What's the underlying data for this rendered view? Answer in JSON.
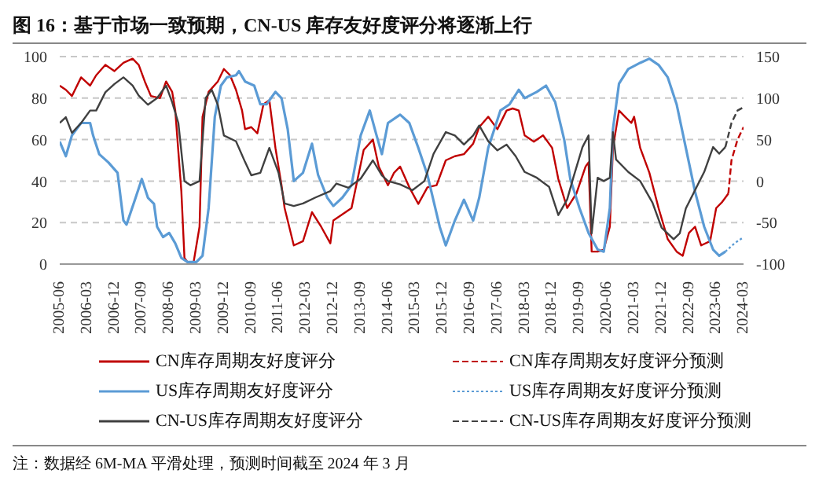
{
  "chart_data": {
    "type": "line",
    "title": "图 16：基于市场一致预期，CN-US 库存友好度评分将逐渐上行",
    "annotations": [
      "注：数据经 6M-MA 平滑处理，预测时间截至 2024 年 3 月"
    ],
    "xlim": [
      "2005-06",
      "2024-03"
    ],
    "xticks": [
      "2005-06",
      "2006-03",
      "2006-12",
      "2007-09",
      "2008-06",
      "2009-03",
      "2009-12",
      "2010-09",
      "2011-06",
      "2012-03",
      "2012-12",
      "2013-09",
      "2014-06",
      "2015-03",
      "2015-12",
      "2016-09",
      "2017-06",
      "2018-03",
      "2018-12",
      "2019-09",
      "2020-06",
      "2021-03",
      "2021-12",
      "2022-09",
      "2023-06",
      "2024-03"
    ],
    "ylim": [
      0,
      100
    ],
    "yticks": [
      0,
      20,
      40,
      60,
      80,
      100
    ],
    "y2lim": [
      -100,
      150
    ],
    "y2ticks": [
      -100,
      -50,
      0,
      50,
      100,
      150
    ],
    "grid": "y",
    "legend": "bottom",
    "marker": "none",
    "series": [
      {
        "name": "CN库存周期友好度评分",
        "color": "#c00000",
        "line_style": "solid",
        "x": [
          "2005-06",
          "2005-08",
          "2005-10",
          "2006-01",
          "2006-04",
          "2006-06",
          "2006-09",
          "2006-12",
          "2007-03",
          "2007-06",
          "2007-08",
          "2007-10",
          "2007-12",
          "2008-03",
          "2008-05",
          "2008-07",
          "2008-08",
          "2008-10",
          "2008-11",
          "2008-12",
          "2009-02",
          "2009-04",
          "2009-05",
          "2009-07",
          "2009-10",
          "2009-12",
          "2010-02",
          "2010-04",
          "2010-06",
          "2010-07",
          "2010-09",
          "2010-11",
          "2011-01",
          "2011-03",
          "2011-05",
          "2011-07",
          "2011-08",
          "2011-11",
          "2012-02",
          "2012-05",
          "2012-08",
          "2012-11",
          "2012-12",
          "2013-03",
          "2013-06",
          "2013-08",
          "2013-10",
          "2014-01",
          "2014-03",
          "2014-06",
          "2014-08",
          "2014-10",
          "2015-01",
          "2015-04",
          "2015-07",
          "2015-10",
          "2016-01",
          "2016-04",
          "2016-07",
          "2016-10",
          "2016-12",
          "2017-03",
          "2017-06",
          "2017-09",
          "2017-11",
          "2018-01",
          "2018-03",
          "2018-06",
          "2018-09",
          "2018-12",
          "2019-02",
          "2019-05",
          "2019-08",
          "2019-11",
          "2019-12",
          "2020-01",
          "2020-03",
          "2020-05",
          "2020-07",
          "2020-08",
          "2020-10",
          "2020-12",
          "2021-02",
          "2021-03",
          "2021-05",
          "2021-08",
          "2021-11",
          "2022-02",
          "2022-05",
          "2022-07",
          "2022-09",
          "2022-11",
          "2023-01",
          "2023-04",
          "2023-06",
          "2023-08",
          "2023-10"
        ],
        "values": [
          86,
          84,
          81,
          90,
          86,
          91,
          96,
          93,
          97,
          99,
          96,
          88,
          81,
          80,
          88,
          83,
          74,
          35,
          3,
          1,
          1,
          18,
          71,
          83,
          88,
          94,
          91,
          84,
          74,
          65,
          66,
          63,
          77,
          79,
          56,
          38,
          27,
          9,
          11,
          25,
          18,
          10,
          21,
          24,
          27,
          41,
          55,
          60,
          47,
          38,
          44,
          47,
          37,
          29,
          37,
          38,
          50,
          52,
          53,
          58,
          66,
          71,
          65,
          74,
          75,
          74,
          62,
          59,
          62,
          56,
          41,
          27,
          34,
          47,
          49,
          6,
          6,
          7,
          18,
          56,
          74,
          71,
          68,
          71,
          56,
          44,
          27,
          12,
          6,
          4,
          15,
          18,
          9,
          11,
          27,
          30,
          34
        ]
      },
      {
        "name": "CN库存周期友好度评分预测",
        "color": "#c00000",
        "line_style": "dashed",
        "x": [
          "2023-10",
          "2023-11",
          "2024-01",
          "2024-03"
        ],
        "values": [
          34,
          50,
          60,
          66
        ]
      },
      {
        "name": "US库存周期友好度评分",
        "color": "#5b9bd5",
        "line_style": "solid",
        "x": [
          "2005-06",
          "2005-08",
          "2005-10",
          "2006-01",
          "2006-04",
          "2006-05",
          "2006-07",
          "2006-10",
          "2007-01",
          "2007-03",
          "2007-04",
          "2007-07",
          "2007-09",
          "2007-11",
          "2008-01",
          "2008-02",
          "2008-04",
          "2008-06",
          "2008-08",
          "2008-10",
          "2008-12",
          "2009-03",
          "2009-05",
          "2009-07",
          "2009-09",
          "2009-11",
          "2010-01",
          "2010-04",
          "2010-05",
          "2010-07",
          "2010-10",
          "2010-12",
          "2011-02",
          "2011-05",
          "2011-07",
          "2011-09",
          "2011-11",
          "2012-02",
          "2012-05",
          "2012-07",
          "2012-10",
          "2012-12",
          "2013-03",
          "2013-06",
          "2013-09",
          "2013-12",
          "2014-02",
          "2014-04",
          "2014-06",
          "2014-10",
          "2015-01",
          "2015-04",
          "2015-07",
          "2015-11",
          "2016-01",
          "2016-04",
          "2016-07",
          "2016-10",
          "2016-12",
          "2017-03",
          "2017-07",
          "2017-10",
          "2018-01",
          "2018-03",
          "2018-07",
          "2018-10",
          "2019-01",
          "2019-04",
          "2019-06",
          "2019-09",
          "2019-12",
          "2020-03",
          "2020-05",
          "2020-07",
          "2020-08",
          "2020-10",
          "2021-01",
          "2021-05",
          "2021-08",
          "2021-11",
          "2022-02",
          "2022-05",
          "2022-08",
          "2022-11",
          "2023-02",
          "2023-05",
          "2023-07",
          "2023-09"
        ],
        "values": [
          59,
          52,
          62,
          68,
          68,
          62,
          53,
          49,
          44,
          21,
          19,
          32,
          41,
          32,
          29,
          18,
          13,
          15,
          10,
          3,
          1,
          1,
          4,
          27,
          71,
          86,
          90,
          91,
          93,
          88,
          86,
          77,
          77,
          83,
          80,
          65,
          40,
          44,
          58,
          43,
          32,
          28,
          32,
          38,
          62,
          74,
          63,
          53,
          68,
          72,
          68,
          56,
          43,
          18,
          9,
          21,
          31,
          21,
          32,
          56,
          74,
          77,
          84,
          80,
          83,
          86,
          78,
          60,
          41,
          27,
          15,
          7,
          6,
          27,
          65,
          87,
          94,
          97,
          99,
          96,
          90,
          77,
          56,
          35,
          18,
          7,
          4,
          6
        ]
      },
      {
        "name": "US库存周期友好度评分预测",
        "color": "#5b9bd5",
        "line_style": "dotted",
        "x": [
          "2023-09",
          "2023-12",
          "2024-03"
        ],
        "values": [
          6,
          10,
          13
        ]
      },
      {
        "name": "CN-US库存周期友好度评分",
        "color": "#404040",
        "line_style": "solid",
        "axis": "y2",
        "x": [
          "2005-06",
          "2005-08",
          "2005-10",
          "2006-01",
          "2006-04",
          "2006-06",
          "2006-09",
          "2006-12",
          "2007-03",
          "2007-06",
          "2007-08",
          "2007-11",
          "2008-02",
          "2008-05",
          "2008-07",
          "2008-09",
          "2008-11",
          "2009-01",
          "2009-04",
          "2009-06",
          "2009-08",
          "2009-10",
          "2009-12",
          "2010-04",
          "2010-07",
          "2010-09",
          "2010-12",
          "2011-03",
          "2011-06",
          "2011-08",
          "2011-11",
          "2012-02",
          "2012-06",
          "2012-11",
          "2013-01",
          "2013-05",
          "2013-09",
          "2014-01",
          "2014-04",
          "2014-06",
          "2014-10",
          "2015-02",
          "2015-06",
          "2015-09",
          "2016-01",
          "2016-04",
          "2016-07",
          "2016-10",
          "2016-12",
          "2017-03",
          "2017-06",
          "2017-09",
          "2017-12",
          "2018-03",
          "2018-07",
          "2018-11",
          "2019-02",
          "2019-05",
          "2019-07",
          "2019-10",
          "2019-12",
          "2020-01",
          "2020-03",
          "2020-05",
          "2020-07",
          "2020-08",
          "2020-09",
          "2021-01",
          "2021-05",
          "2021-09",
          "2021-12",
          "2022-04",
          "2022-06",
          "2022-08",
          "2022-11",
          "2023-02",
          "2023-05",
          "2023-07",
          "2023-09"
        ],
        "values": [
          70,
          77,
          58,
          70,
          85,
          85,
          107,
          117,
          125,
          115,
          103,
          92,
          100,
          115,
          95,
          70,
          0,
          -5,
          0,
          100,
          110,
          92,
          55,
          48,
          23,
          7,
          10,
          40,
          10,
          -27,
          -30,
          -27,
          -20,
          -12,
          -3,
          -8,
          3,
          25,
          7,
          0,
          -4,
          -11,
          0,
          33,
          59,
          55,
          44,
          55,
          67,
          48,
          37,
          44,
          30,
          11,
          4,
          -7,
          -41,
          -22,
          4,
          41,
          55,
          -63,
          4,
          0,
          4,
          59,
          26,
          11,
          0,
          -26,
          -56,
          -70,
          -63,
          -33,
          -11,
          11,
          41,
          33,
          41
        ]
      },
      {
        "name": "CN-US库存周期友好度评分预测",
        "color": "#404040",
        "line_style": "dashed",
        "axis": "y2",
        "x": [
          "2023-09",
          "2023-11",
          "2024-01",
          "2024-03"
        ],
        "values": [
          41,
          70,
          85,
          89
        ]
      }
    ]
  }
}
